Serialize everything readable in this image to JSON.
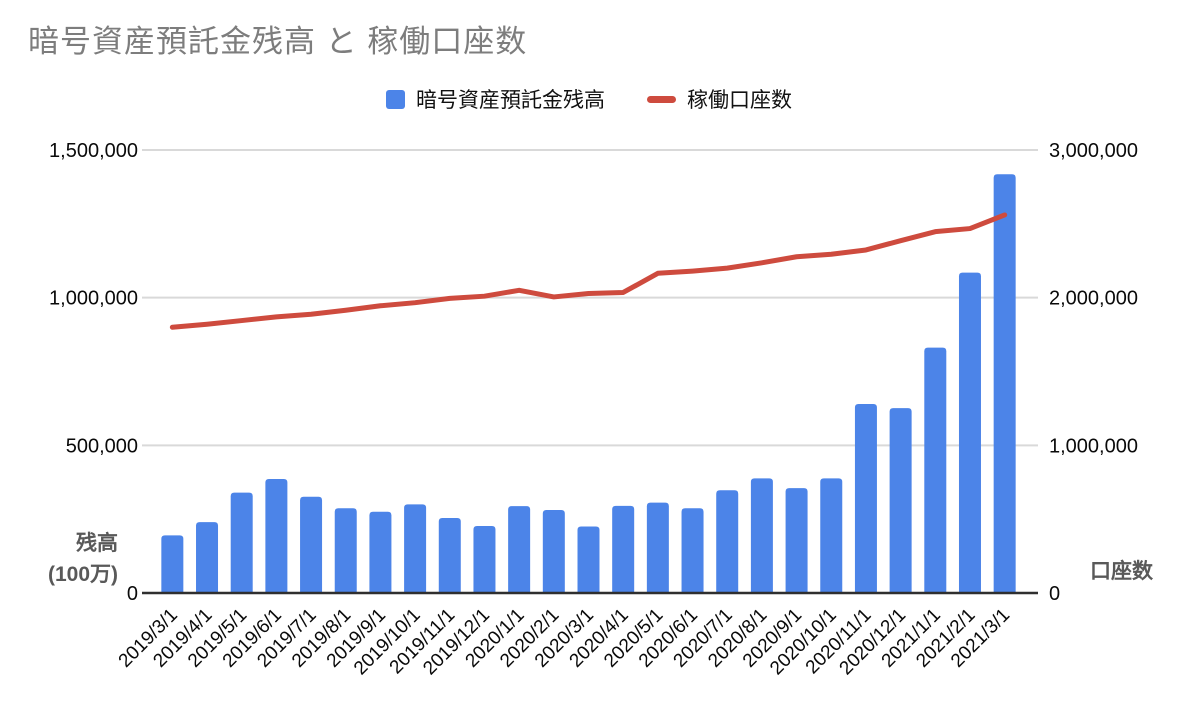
{
  "title": "暗号資産預託金残高 と 稼働口座数",
  "chart_data": {
    "type": "combo: bar + line, dual y-axis",
    "title": "暗号資産預託金残高 と 稼働口座数",
    "grid": true,
    "legend_position": "top",
    "categories": [
      "2019/3/1",
      "2019/4/1",
      "2019/5/1",
      "2019/6/1",
      "2019/7/1",
      "2019/8/1",
      "2019/9/1",
      "2019/10/1",
      "2019/11/1",
      "2019/12/1",
      "2020/1/1",
      "2020/2/1",
      "2020/3/1",
      "2020/4/1",
      "2020/5/1",
      "2020/6/1",
      "2020/7/1",
      "2020/8/1",
      "2020/9/1",
      "2020/10/1",
      "2020/11/1",
      "2020/12/1",
      "2021/1/1",
      "2021/2/1",
      "2021/3/1"
    ],
    "series": [
      {
        "name": "暗号資産預託金残高",
        "type": "bar",
        "yaxis": "left",
        "color": "#4C84E8",
        "values": [
          195000,
          240000,
          340000,
          386000,
          326000,
          287000,
          275000,
          300000,
          254000,
          227000,
          294000,
          281000,
          225000,
          295000,
          306000,
          287000,
          348000,
          388000,
          355000,
          388000,
          640000,
          626000,
          831000,
          1085000,
          1418000
        ]
      },
      {
        "name": "稼働口座数",
        "type": "line",
        "yaxis": "right",
        "color": "#CE4B3E",
        "values": [
          1800000,
          1820000,
          1845000,
          1870000,
          1888000,
          1915000,
          1945000,
          1966000,
          1995000,
          2010000,
          2050000,
          2005000,
          2028000,
          2035000,
          2165000,
          2180000,
          2200000,
          2236000,
          2277000,
          2294000,
          2323000,
          2386000,
          2447000,
          2468000,
          2560000
        ]
      }
    ],
    "left_axis": {
      "title_lines": [
        "残高",
        "(100万)"
      ],
      "min": 0,
      "max": 1500000,
      "ticks": [
        0,
        500000,
        1000000,
        1500000
      ],
      "tick_labels": [
        "0",
        "500,000",
        "1,000,000",
        "1,500,000"
      ]
    },
    "right_axis": {
      "title": "口座数",
      "min": 0,
      "max": 3000000,
      "ticks": [
        0,
        1000000,
        2000000,
        3000000
      ],
      "tick_labels": [
        "0",
        "1,000,000",
        "2,000,000",
        "3,000,000"
      ]
    }
  },
  "colors": {
    "bar": "#4C84E8",
    "line": "#CE4B3E",
    "grid": "#D9D9D9",
    "baseline": "#2F2F2F",
    "title_text": "#7D7D7D",
    "axis_title_text": "#595959",
    "tick_text": "#0A0A0A",
    "background": "#FFFFFF"
  }
}
